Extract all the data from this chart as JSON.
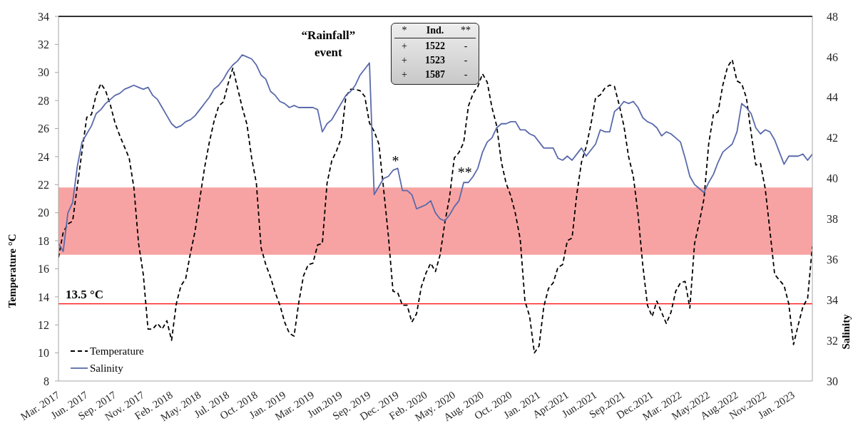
{
  "chart_data": {
    "type": "line",
    "categories": [
      "Mar. 2017",
      null,
      null,
      null,
      null,
      null,
      "Jun. 2017",
      null,
      null,
      null,
      null,
      null,
      "Sep. 2017",
      null,
      null,
      null,
      null,
      null,
      "Nov. 2017",
      null,
      null,
      null,
      null,
      null,
      "Feb. 2018",
      null,
      null,
      null,
      null,
      null,
      "May. 2018",
      null,
      null,
      null,
      null,
      null,
      "Jul. 2018",
      null,
      null,
      null,
      null,
      null,
      "Oct. 2018",
      null,
      null,
      null,
      null,
      null,
      "Jan. 2019",
      null,
      null,
      null,
      null,
      null,
      "Mar. 2019",
      null,
      null,
      null,
      null,
      null,
      "Jun.2019",
      null,
      null,
      null,
      null,
      null,
      "Sep. 2019",
      null,
      null,
      null,
      null,
      null,
      "Dec. 2019",
      null,
      null,
      null,
      null,
      null,
      "Feb. 2020",
      null,
      null,
      null,
      null,
      null,
      "May. 2020",
      null,
      null,
      null,
      null,
      null,
      "Aug. 2020",
      null,
      null,
      null,
      null,
      null,
      "Oct. 2020",
      null,
      null,
      null,
      null,
      null,
      "Jan. 2021",
      null,
      null,
      null,
      null,
      null,
      "Apr.2021",
      null,
      null,
      null,
      null,
      null,
      "Jun.2021",
      null,
      null,
      null,
      null,
      null,
      "Sep.2021",
      null,
      null,
      null,
      null,
      null,
      "Dec.2021",
      null,
      null,
      null,
      null,
      null,
      "Mar. 2022",
      null,
      null,
      null,
      null,
      null,
      "May.2022",
      null,
      null,
      null,
      null,
      null,
      "Aug.2022",
      null,
      null,
      null,
      null,
      null,
      "Nov.2022",
      null,
      null,
      null,
      null,
      null,
      "Jan. 2023",
      null,
      null,
      null,
      null
    ],
    "series": [
      {
        "name": "Temperature",
        "color": "#000000",
        "line_style": "dashed",
        "values": [
          16.8,
          18.6,
          19.2,
          19.4,
          21.9,
          24.4,
          26.8,
          27.0,
          28.4,
          29.2,
          28.7,
          27.7,
          26.4,
          25.5,
          24.7,
          23.9,
          21.8,
          17.8,
          15.6,
          11.7,
          11.7,
          12.1,
          11.7,
          12.3,
          10.9,
          13.5,
          14.8,
          15.3,
          17.1,
          18.7,
          21.0,
          23.2,
          25.0,
          26.5,
          27.6,
          27.9,
          29.2,
          30.3,
          28.9,
          27.5,
          26.3,
          23.9,
          22.1,
          17.5,
          16.3,
          15.4,
          14.3,
          13.4,
          12.2,
          11.4,
          11.2,
          13.6,
          15.5,
          16.3,
          16.4,
          17.7,
          17.8,
          22.1,
          23.7,
          24.4,
          25.3,
          28.3,
          28.8,
          28.8,
          28.7,
          28.3,
          26.4,
          25.8,
          24.9,
          21.7,
          18.4,
          14.4,
          14.3,
          13.4,
          13.4,
          12.2,
          12.8,
          14.7,
          15.7,
          16.4,
          15.8,
          17.0,
          19.3,
          21.1,
          23.9,
          24.3,
          25.0,
          27.6,
          28.5,
          29.0,
          29.9,
          29.3,
          27.5,
          26.2,
          23.6,
          22.1,
          21.2,
          19.9,
          18.1,
          13.7,
          12.6,
          10.0,
          10.5,
          13.3,
          14.6,
          15.0,
          16.1,
          16.3,
          18.0,
          18.2,
          21.3,
          23.6,
          24.7,
          26.3,
          28.2,
          28.4,
          28.9,
          29.1,
          29.0,
          27.7,
          26.2,
          24.0,
          22.6,
          19.9,
          16.3,
          13.4,
          12.6,
          13.7,
          12.9,
          12.1,
          12.9,
          14.4,
          15.0,
          15.1,
          13.2,
          17.8,
          19.3,
          21.0,
          24.9,
          27.0,
          27.2,
          29.1,
          30.4,
          30.9,
          29.4,
          29.2,
          28.2,
          25.7,
          23.4,
          23.5,
          21.7,
          18.7,
          15.6,
          15.2,
          14.8,
          13.5,
          10.6,
          12.0,
          13.3,
          13.9,
          17.6
        ]
      },
      {
        "name": "Salinity",
        "color": "#5a6aab",
        "line_style": "solid",
        "axis": "y2",
        "values": [
          36.8,
          36.4,
          38.3,
          38.8,
          40.6,
          41.8,
          42.2,
          42.6,
          43.2,
          43.4,
          43.7,
          43.9,
          44.1,
          44.2,
          44.4,
          44.5,
          44.6,
          44.5,
          44.4,
          44.5,
          44.1,
          43.9,
          43.5,
          43.1,
          42.7,
          42.5,
          42.6,
          42.8,
          42.9,
          43.1,
          43.4,
          43.7,
          44.0,
          44.4,
          44.6,
          44.9,
          45.3,
          45.6,
          45.8,
          46.1,
          46.0,
          45.9,
          45.6,
          45.1,
          44.9,
          44.3,
          44.1,
          43.8,
          43.7,
          43.5,
          43.6,
          43.5,
          43.5,
          43.5,
          43.5,
          43.4,
          42.3,
          42.7,
          42.9,
          43.3,
          43.7,
          44.1,
          44.3,
          44.6,
          45.1,
          45.4,
          45.7,
          39.2,
          39.6,
          40.0,
          40.1,
          40.4,
          40.5,
          39.4,
          39.4,
          39.2,
          38.5,
          38.6,
          38.7,
          38.9,
          38.3,
          38.0,
          37.9,
          38.2,
          38.6,
          38.9,
          39.8,
          39.8,
          40.1,
          40.5,
          41.3,
          41.8,
          42.0,
          42.5,
          42.7,
          42.7,
          42.8,
          42.8,
          42.4,
          42.4,
          42.2,
          42.1,
          41.8,
          41.5,
          41.5,
          41.5,
          41.0,
          40.9,
          41.1,
          40.9,
          41.2,
          41.5,
          41.1,
          41.4,
          41.7,
          42.4,
          42.3,
          42.3,
          43.3,
          43.5,
          43.8,
          43.7,
          43.8,
          43.5,
          43.0,
          42.8,
          42.7,
          42.5,
          42.1,
          42.3,
          42.2,
          42.0,
          41.8,
          41.0,
          40.1,
          39.7,
          39.5,
          39.3,
          39.8,
          40.2,
          40.8,
          41.3,
          41.5,
          41.7,
          42.3,
          43.7,
          43.5,
          43.2,
          42.5,
          42.2,
          42.4,
          42.3,
          41.9,
          41.3,
          40.7,
          41.1,
          41.1,
          41.1,
          41.2,
          40.9,
          41.2
        ]
      }
    ],
    "ylabel": "Temperature °C",
    "y2label": "Salinity",
    "ylim": [
      8,
      34
    ],
    "yticks": [
      8,
      10,
      12,
      14,
      16,
      18,
      20,
      22,
      24,
      26,
      28,
      30,
      32,
      34
    ],
    "y2lim": [
      30,
      48
    ],
    "y2ticks": [
      30,
      32,
      34,
      36,
      38,
      40,
      42,
      44,
      46,
      48
    ],
    "bands": [
      {
        "axis": "y",
        "from": 17,
        "to": 21.8,
        "color": "#f8a3a3"
      }
    ],
    "ref_lines": [
      {
        "axis": "y",
        "value": 13.5,
        "label": "13.5 °C",
        "color": "#ff0000"
      }
    ],
    "annotations": [
      "“Rainfall” event",
      "*",
      "**",
      "*",
      "Ind.",
      "**",
      "+",
      "1522",
      "-",
      "+",
      "1523",
      "-",
      "+",
      "1587",
      "-"
    ],
    "legend": "bottom left",
    "marker": "none"
  }
}
